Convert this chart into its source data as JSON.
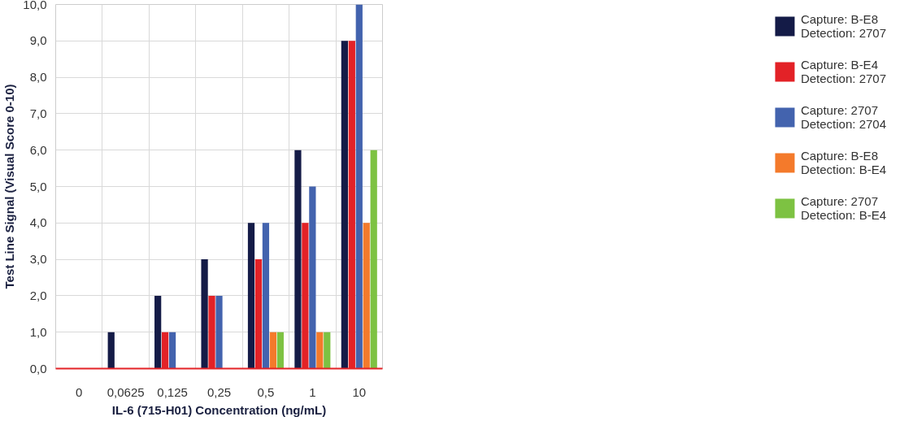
{
  "chart_data": {
    "type": "bar",
    "xlabel": "IL-6 (715-H01) Concentration (ng/mL)",
    "ylabel": "Test Line Signal (Visual Score 0-10)",
    "categories": [
      "0",
      "0,0625",
      "0,125",
      "0,25",
      "0,5",
      "1",
      "10"
    ],
    "series": [
      {
        "name": "Capture: B-E8\nDetection: 2707",
        "color": "#141b47",
        "values": [
          0,
          1,
          2,
          3,
          4,
          6,
          9
        ]
      },
      {
        "name": "Capture: B-E4\nDetection: 2707",
        "color": "#e32227",
        "values": [
          0,
          0,
          1,
          2,
          3,
          4,
          9
        ]
      },
      {
        "name": "Capture: 2707\nDetection: 2704",
        "color": "#4363ae",
        "values": [
          0,
          0,
          1,
          2,
          4,
          5,
          10
        ]
      },
      {
        "name": "Capture: B-E8\nDetection: B-E4",
        "color": "#f47a2b",
        "values": [
          0,
          0,
          0,
          0,
          1,
          1,
          4
        ]
      },
      {
        "name": "Capture: 2707\nDetection: B-E4",
        "color": "#7dc242",
        "values": [
          0,
          0,
          0,
          0,
          1,
          1,
          6
        ]
      }
    ],
    "ylim": [
      0,
      10
    ],
    "yticks": [
      {
        "value": 0,
        "label": "0,0"
      },
      {
        "value": 1,
        "label": "1,0"
      },
      {
        "value": 2,
        "label": "2,0"
      },
      {
        "value": 3,
        "label": "3,0"
      },
      {
        "value": 4,
        "label": "4,0"
      },
      {
        "value": 5,
        "label": "5,0"
      },
      {
        "value": 6,
        "label": "6,0"
      },
      {
        "value": 7,
        "label": "7,0"
      },
      {
        "value": 8,
        "label": "8,0"
      },
      {
        "value": 9,
        "label": "9,0"
      },
      {
        "value": 10,
        "label": "10,0"
      }
    ],
    "grid": true,
    "legend": "right"
  }
}
